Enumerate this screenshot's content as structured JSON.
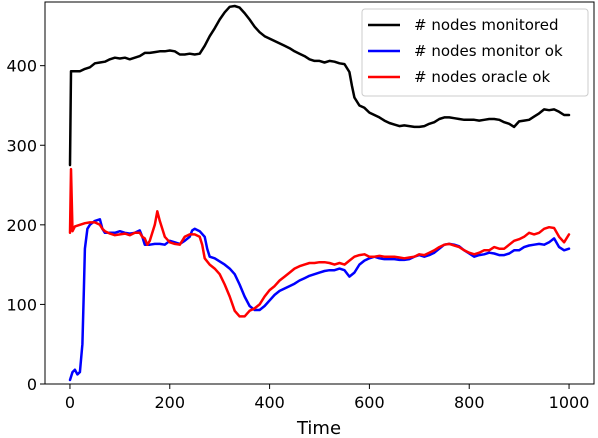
{
  "chart_data": {
    "type": "line",
    "title": "",
    "xlabel": "Time",
    "ylabel": "",
    "xlim": [
      -50,
      1050
    ],
    "ylim": [
      0,
      480
    ],
    "xticks": [
      0,
      200,
      400,
      600,
      800,
      1000
    ],
    "yticks": [
      0,
      100,
      200,
      300,
      400
    ],
    "grid": false,
    "legend_position": "top-right",
    "series": [
      {
        "name": "# nodes monitored",
        "color": "#000000",
        "points": [
          [
            0,
            275
          ],
          [
            2,
            393
          ],
          [
            10,
            393
          ],
          [
            20,
            393
          ],
          [
            30,
            396
          ],
          [
            40,
            398
          ],
          [
            50,
            403
          ],
          [
            60,
            404
          ],
          [
            70,
            405
          ],
          [
            80,
            408
          ],
          [
            90,
            410
          ],
          [
            100,
            409
          ],
          [
            110,
            410
          ],
          [
            120,
            408
          ],
          [
            130,
            410
          ],
          [
            140,
            412
          ],
          [
            150,
            416
          ],
          [
            160,
            416
          ],
          [
            170,
            417
          ],
          [
            180,
            418
          ],
          [
            190,
            418
          ],
          [
            200,
            419
          ],
          [
            210,
            418
          ],
          [
            220,
            414
          ],
          [
            230,
            414
          ],
          [
            240,
            415
          ],
          [
            250,
            414
          ],
          [
            260,
            415
          ],
          [
            270,
            425
          ],
          [
            280,
            437
          ],
          [
            290,
            447
          ],
          [
            300,
            458
          ],
          [
            310,
            467
          ],
          [
            320,
            474
          ],
          [
            330,
            475
          ],
          [
            340,
            473
          ],
          [
            350,
            466
          ],
          [
            360,
            458
          ],
          [
            370,
            449
          ],
          [
            380,
            442
          ],
          [
            390,
            437
          ],
          [
            400,
            434
          ],
          [
            410,
            431
          ],
          [
            420,
            428
          ],
          [
            430,
            425
          ],
          [
            440,
            422
          ],
          [
            450,
            418
          ],
          [
            460,
            415
          ],
          [
            470,
            412
          ],
          [
            480,
            408
          ],
          [
            490,
            406
          ],
          [
            500,
            406
          ],
          [
            510,
            404
          ],
          [
            520,
            406
          ],
          [
            530,
            405
          ],
          [
            540,
            403
          ],
          [
            550,
            402
          ],
          [
            560,
            392
          ],
          [
            565,
            375
          ],
          [
            570,
            360
          ],
          [
            580,
            350
          ],
          [
            590,
            347
          ],
          [
            600,
            341
          ],
          [
            610,
            338
          ],
          [
            620,
            335
          ],
          [
            630,
            331
          ],
          [
            640,
            328
          ],
          [
            650,
            326
          ],
          [
            660,
            324
          ],
          [
            670,
            325
          ],
          [
            680,
            324
          ],
          [
            690,
            323
          ],
          [
            700,
            323
          ],
          [
            710,
            324
          ],
          [
            720,
            327
          ],
          [
            730,
            329
          ],
          [
            740,
            333
          ],
          [
            750,
            335
          ],
          [
            760,
            335
          ],
          [
            770,
            334
          ],
          [
            780,
            333
          ],
          [
            790,
            332
          ],
          [
            800,
            332
          ],
          [
            810,
            332
          ],
          [
            820,
            331
          ],
          [
            830,
            332
          ],
          [
            840,
            333
          ],
          [
            850,
            333
          ],
          [
            860,
            332
          ],
          [
            870,
            329
          ],
          [
            880,
            327
          ],
          [
            890,
            323
          ],
          [
            900,
            330
          ],
          [
            910,
            331
          ],
          [
            920,
            332
          ],
          [
            930,
            336
          ],
          [
            940,
            340
          ],
          [
            950,
            345
          ],
          [
            960,
            344
          ],
          [
            970,
            345
          ],
          [
            980,
            342
          ],
          [
            990,
            338
          ],
          [
            1000,
            338
          ]
        ]
      },
      {
        "name": "# nodes monitor ok",
        "color": "#0000ff",
        "points": [
          [
            0,
            5
          ],
          [
            5,
            15
          ],
          [
            10,
            18
          ],
          [
            15,
            12
          ],
          [
            20,
            15
          ],
          [
            25,
            50
          ],
          [
            28,
            120
          ],
          [
            30,
            170
          ],
          [
            35,
            195
          ],
          [
            40,
            200
          ],
          [
            50,
            205
          ],
          [
            60,
            207
          ],
          [
            65,
            195
          ],
          [
            70,
            190
          ],
          [
            80,
            190
          ],
          [
            90,
            190
          ],
          [
            100,
            192
          ],
          [
            110,
            190
          ],
          [
            120,
            189
          ],
          [
            130,
            190
          ],
          [
            140,
            193
          ],
          [
            145,
            185
          ],
          [
            150,
            175
          ],
          [
            160,
            175
          ],
          [
            170,
            176
          ],
          [
            180,
            176
          ],
          [
            190,
            175
          ],
          [
            200,
            180
          ],
          [
            210,
            178
          ],
          [
            220,
            176
          ],
          [
            230,
            180
          ],
          [
            240,
            185
          ],
          [
            245,
            193
          ],
          [
            250,
            195
          ],
          [
            260,
            192
          ],
          [
            270,
            185
          ],
          [
            275,
            170
          ],
          [
            280,
            160
          ],
          [
            290,
            158
          ],
          [
            300,
            154
          ],
          [
            310,
            150
          ],
          [
            320,
            145
          ],
          [
            330,
            138
          ],
          [
            340,
            125
          ],
          [
            350,
            110
          ],
          [
            360,
            98
          ],
          [
            370,
            93
          ],
          [
            380,
            93
          ],
          [
            390,
            98
          ],
          [
            400,
            105
          ],
          [
            410,
            112
          ],
          [
            420,
            117
          ],
          [
            430,
            120
          ],
          [
            440,
            123
          ],
          [
            450,
            126
          ],
          [
            460,
            130
          ],
          [
            470,
            133
          ],
          [
            480,
            136
          ],
          [
            490,
            138
          ],
          [
            500,
            140
          ],
          [
            510,
            142
          ],
          [
            520,
            143
          ],
          [
            530,
            143
          ],
          [
            540,
            145
          ],
          [
            550,
            143
          ],
          [
            560,
            135
          ],
          [
            570,
            140
          ],
          [
            580,
            150
          ],
          [
            590,
            155
          ],
          [
            600,
            158
          ],
          [
            610,
            160
          ],
          [
            620,
            158
          ],
          [
            630,
            157
          ],
          [
            640,
            157
          ],
          [
            650,
            157
          ],
          [
            660,
            156
          ],
          [
            670,
            156
          ],
          [
            680,
            157
          ],
          [
            690,
            160
          ],
          [
            700,
            162
          ],
          [
            710,
            160
          ],
          [
            720,
            162
          ],
          [
            730,
            165
          ],
          [
            740,
            170
          ],
          [
            750,
            175
          ],
          [
            760,
            176
          ],
          [
            770,
            175
          ],
          [
            780,
            173
          ],
          [
            790,
            168
          ],
          [
            800,
            164
          ],
          [
            810,
            160
          ],
          [
            820,
            162
          ],
          [
            830,
            163
          ],
          [
            840,
            165
          ],
          [
            850,
            164
          ],
          [
            860,
            162
          ],
          [
            870,
            162
          ],
          [
            880,
            164
          ],
          [
            890,
            168
          ],
          [
            900,
            168
          ],
          [
            910,
            172
          ],
          [
            920,
            174
          ],
          [
            930,
            175
          ],
          [
            940,
            176
          ],
          [
            950,
            175
          ],
          [
            960,
            178
          ],
          [
            970,
            183
          ],
          [
            980,
            172
          ],
          [
            990,
            168
          ],
          [
            1000,
            170
          ]
        ]
      },
      {
        "name": "# nodes oracle ok",
        "color": "#ff0000",
        "points": [
          [
            0,
            190
          ],
          [
            2,
            270
          ],
          [
            5,
            192
          ],
          [
            10,
            198
          ],
          [
            20,
            200
          ],
          [
            30,
            202
          ],
          [
            40,
            203
          ],
          [
            50,
            203
          ],
          [
            60,
            200
          ],
          [
            65,
            195
          ],
          [
            70,
            192
          ],
          [
            80,
            189
          ],
          [
            90,
            187
          ],
          [
            100,
            188
          ],
          [
            110,
            189
          ],
          [
            120,
            187
          ],
          [
            130,
            190
          ],
          [
            140,
            190
          ],
          [
            145,
            185
          ],
          [
            150,
            183
          ],
          [
            155,
            175
          ],
          [
            160,
            180
          ],
          [
            170,
            200
          ],
          [
            175,
            217
          ],
          [
            180,
            205
          ],
          [
            190,
            185
          ],
          [
            200,
            178
          ],
          [
            210,
            176
          ],
          [
            220,
            175
          ],
          [
            230,
            185
          ],
          [
            240,
            188
          ],
          [
            250,
            188
          ],
          [
            260,
            185
          ],
          [
            265,
            175
          ],
          [
            270,
            158
          ],
          [
            280,
            150
          ],
          [
            290,
            145
          ],
          [
            300,
            138
          ],
          [
            310,
            125
          ],
          [
            320,
            110
          ],
          [
            330,
            92
          ],
          [
            340,
            85
          ],
          [
            350,
            85
          ],
          [
            360,
            92
          ],
          [
            370,
            95
          ],
          [
            380,
            100
          ],
          [
            390,
            110
          ],
          [
            400,
            118
          ],
          [
            410,
            123
          ],
          [
            420,
            130
          ],
          [
            430,
            135
          ],
          [
            440,
            140
          ],
          [
            450,
            145
          ],
          [
            460,
            148
          ],
          [
            470,
            150
          ],
          [
            480,
            152
          ],
          [
            490,
            152
          ],
          [
            500,
            153
          ],
          [
            510,
            153
          ],
          [
            520,
            152
          ],
          [
            530,
            150
          ],
          [
            540,
            152
          ],
          [
            550,
            150
          ],
          [
            560,
            155
          ],
          [
            570,
            160
          ],
          [
            580,
            162
          ],
          [
            590,
            163
          ],
          [
            600,
            160
          ],
          [
            610,
            160
          ],
          [
            620,
            161
          ],
          [
            630,
            160
          ],
          [
            640,
            160
          ],
          [
            650,
            160
          ],
          [
            660,
            159
          ],
          [
            670,
            158
          ],
          [
            680,
            159
          ],
          [
            690,
            160
          ],
          [
            700,
            163
          ],
          [
            710,
            162
          ],
          [
            720,
            165
          ],
          [
            730,
            168
          ],
          [
            740,
            172
          ],
          [
            750,
            175
          ],
          [
            760,
            176
          ],
          [
            770,
            174
          ],
          [
            780,
            172
          ],
          [
            790,
            168
          ],
          [
            800,
            165
          ],
          [
            810,
            163
          ],
          [
            820,
            165
          ],
          [
            830,
            168
          ],
          [
            840,
            168
          ],
          [
            850,
            172
          ],
          [
            860,
            170
          ],
          [
            870,
            170
          ],
          [
            880,
            175
          ],
          [
            890,
            180
          ],
          [
            900,
            182
          ],
          [
            910,
            185
          ],
          [
            920,
            190
          ],
          [
            930,
            188
          ],
          [
            940,
            190
          ],
          [
            950,
            195
          ],
          [
            960,
            197
          ],
          [
            970,
            196
          ],
          [
            980,
            185
          ],
          [
            990,
            178
          ],
          [
            1000,
            188
          ]
        ]
      }
    ]
  }
}
